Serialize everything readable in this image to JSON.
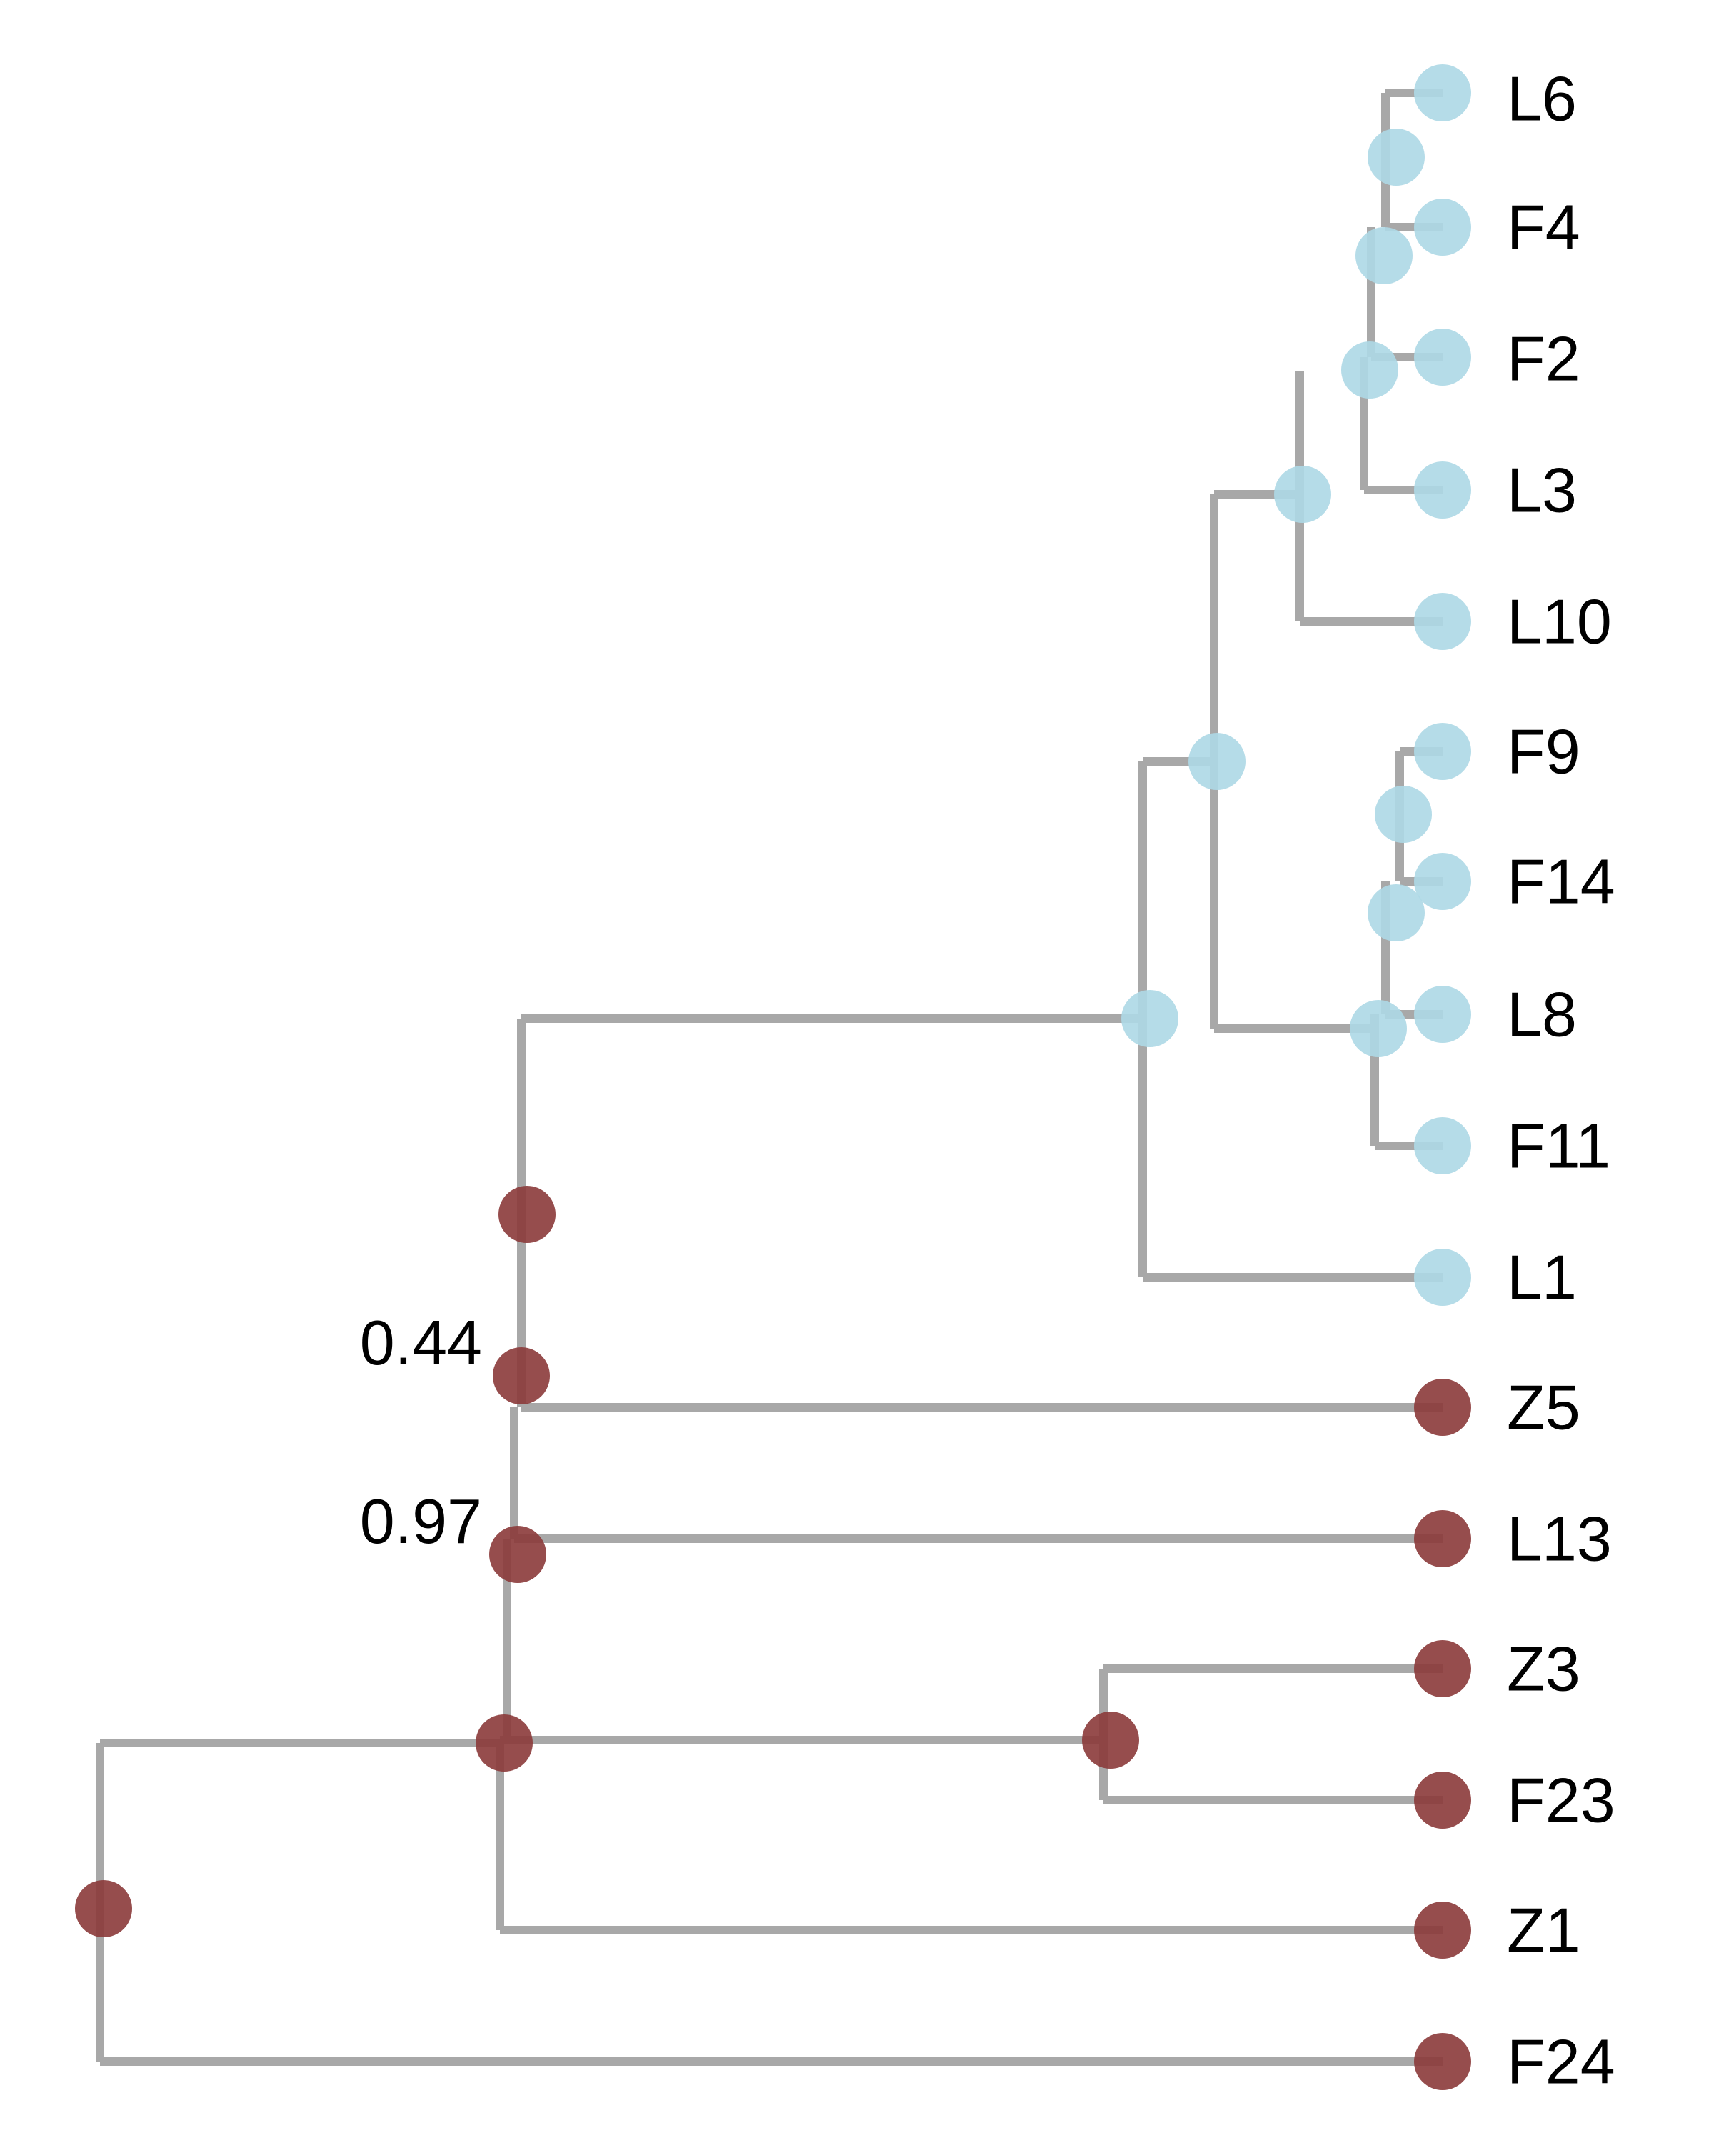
{
  "colors": {
    "edge": "#a8a8a8",
    "group_light": "#add8e6",
    "group_dark": "#8b3a3a"
  },
  "tips": [
    "L6",
    "F4",
    "F2",
    "L3",
    "L10",
    "F9",
    "F14",
    "L8",
    "F11",
    "L1",
    "Z5",
    "L13",
    "Z3",
    "F23",
    "Z1",
    "F24"
  ],
  "support_labels": [
    "0.44",
    "0.97"
  ]
}
